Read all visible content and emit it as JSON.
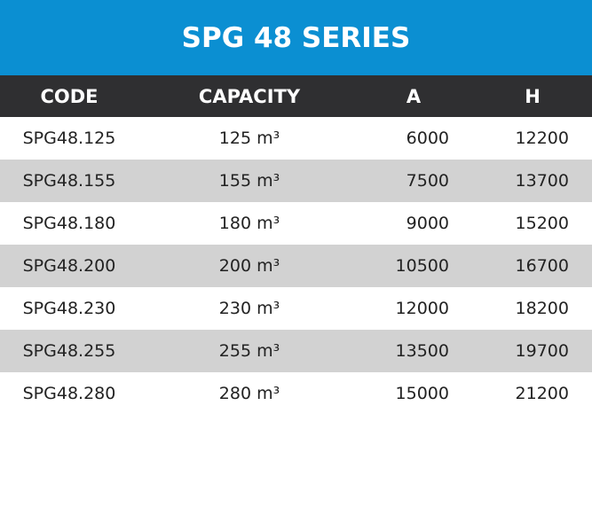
{
  "header": {
    "title": "SPG 48 SERIES"
  },
  "table": {
    "columns": [
      "CODE",
      "CAPACITY",
      "A",
      "H"
    ],
    "rows": [
      [
        "SPG48.125",
        "125 m³",
        "6000",
        "12200"
      ],
      [
        "SPG48.155",
        "155 m³",
        "7500",
        "13700"
      ],
      [
        "SPG48.180",
        "180 m³",
        "9000",
        "15200"
      ],
      [
        "SPG48.200",
        "200 m³",
        "10500",
        "16700"
      ],
      [
        "SPG48.230",
        "230 m³",
        "12000",
        "18200"
      ],
      [
        "SPG48.255",
        "255 m³",
        "13500",
        "19700"
      ],
      [
        "SPG48.280",
        "280 m³",
        "15000",
        "21200"
      ]
    ]
  }
}
